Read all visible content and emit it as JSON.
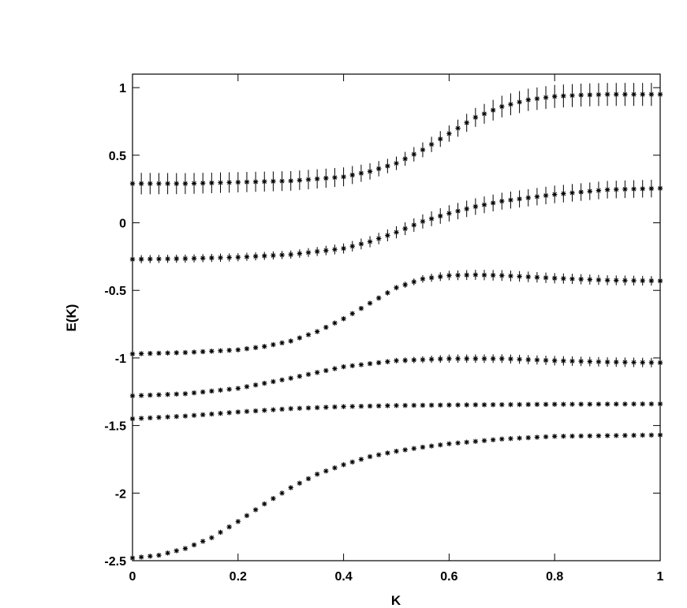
{
  "chart_data": {
    "type": "scatter",
    "title": "",
    "xlabel": "K",
    "ylabel": "E(K)",
    "xlim": [
      0,
      1
    ],
    "ylim": [
      -2.5,
      1.1
    ],
    "x_ticks": [
      "0",
      "0.2",
      "0.4",
      "0.6",
      "0.8",
      "1"
    ],
    "y_ticks": [
      "1",
      "0.5",
      "0",
      "-0.5",
      "-1",
      "-1.5",
      "-2",
      "-2.5"
    ],
    "grid": false,
    "marker_color": "#000000",
    "marker": "star",
    "n_points": 61,
    "series": [
      {
        "curve": [
          [
            0,
            0.29
          ],
          [
            0.1,
            0.29
          ],
          [
            0.2,
            0.3
          ],
          [
            0.3,
            0.31
          ],
          [
            0.4,
            0.34
          ],
          [
            0.45,
            0.38
          ],
          [
            0.5,
            0.44
          ],
          [
            0.55,
            0.54
          ],
          [
            0.6,
            0.66
          ],
          [
            0.65,
            0.78
          ],
          [
            0.7,
            0.86
          ],
          [
            0.75,
            0.91
          ],
          [
            0.8,
            0.935
          ],
          [
            0.85,
            0.945
          ],
          [
            0.9,
            0.95
          ],
          [
            1.0,
            0.95
          ]
        ],
        "error": [
          [
            0,
            0.08
          ],
          [
            0.2,
            0.075
          ],
          [
            0.4,
            0.07
          ],
          [
            0.5,
            0.05
          ],
          [
            0.6,
            0.06
          ],
          [
            0.7,
            0.08
          ],
          [
            0.8,
            0.085
          ],
          [
            1.0,
            0.085
          ]
        ]
      },
      {
        "curve": [
          [
            0,
            -0.27
          ],
          [
            0.1,
            -0.265
          ],
          [
            0.2,
            -0.255
          ],
          [
            0.3,
            -0.235
          ],
          [
            0.4,
            -0.19
          ],
          [
            0.45,
            -0.14
          ],
          [
            0.5,
            -0.07
          ],
          [
            0.55,
            0.01
          ],
          [
            0.6,
            0.07
          ],
          [
            0.65,
            0.12
          ],
          [
            0.7,
            0.16
          ],
          [
            0.8,
            0.21
          ],
          [
            0.9,
            0.245
          ],
          [
            1.0,
            0.255
          ]
        ],
        "error": [
          [
            0,
            0.03
          ],
          [
            0.3,
            0.03
          ],
          [
            0.5,
            0.045
          ],
          [
            0.6,
            0.06
          ],
          [
            0.8,
            0.065
          ],
          [
            1.0,
            0.065
          ]
        ]
      },
      {
        "curve": [
          [
            0,
            -0.97
          ],
          [
            0.1,
            -0.96
          ],
          [
            0.2,
            -0.94
          ],
          [
            0.25,
            -0.915
          ],
          [
            0.3,
            -0.875
          ],
          [
            0.35,
            -0.805
          ],
          [
            0.4,
            -0.71
          ],
          [
            0.45,
            -0.595
          ],
          [
            0.5,
            -0.48
          ],
          [
            0.55,
            -0.415
          ],
          [
            0.6,
            -0.39
          ],
          [
            0.65,
            -0.385
          ],
          [
            0.7,
            -0.39
          ],
          [
            0.8,
            -0.41
          ],
          [
            0.9,
            -0.425
          ],
          [
            1.0,
            -0.43
          ]
        ],
        "error": [
          [
            0,
            0.015
          ],
          [
            0.4,
            0.015
          ],
          [
            0.5,
            0.02
          ],
          [
            0.6,
            0.035
          ],
          [
            0.7,
            0.04
          ],
          [
            1.0,
            0.035
          ]
        ]
      },
      {
        "curve": [
          [
            0,
            -1.28
          ],
          [
            0.1,
            -1.265
          ],
          [
            0.2,
            -1.225
          ],
          [
            0.3,
            -1.15
          ],
          [
            0.4,
            -1.065
          ],
          [
            0.5,
            -1.02
          ],
          [
            0.6,
            -1.005
          ],
          [
            0.7,
            -1.005
          ],
          [
            0.8,
            -1.02
          ],
          [
            0.9,
            -1.03
          ],
          [
            1.0,
            -1.035
          ]
        ],
        "error": [
          [
            0,
            0.01
          ],
          [
            0.4,
            0.01
          ],
          [
            0.5,
            0.02
          ],
          [
            0.6,
            0.03
          ],
          [
            0.8,
            0.035
          ],
          [
            1.0,
            0.035
          ]
        ]
      },
      {
        "curve": [
          [
            0,
            -1.45
          ],
          [
            0.1,
            -1.43
          ],
          [
            0.2,
            -1.4
          ],
          [
            0.3,
            -1.375
          ],
          [
            0.4,
            -1.36
          ],
          [
            0.5,
            -1.352
          ],
          [
            0.6,
            -1.348
          ],
          [
            0.8,
            -1.343
          ],
          [
            1.0,
            -1.34
          ]
        ],
        "error": [
          [
            0,
            0.005
          ],
          [
            1.0,
            0.005
          ]
        ]
      },
      {
        "curve": [
          [
            0,
            -2.48
          ],
          [
            0.05,
            -2.46
          ],
          [
            0.1,
            -2.41
          ],
          [
            0.15,
            -2.33
          ],
          [
            0.2,
            -2.21
          ],
          [
            0.25,
            -2.08
          ],
          [
            0.3,
            -1.96
          ],
          [
            0.35,
            -1.86
          ],
          [
            0.4,
            -1.79
          ],
          [
            0.45,
            -1.73
          ],
          [
            0.5,
            -1.69
          ],
          [
            0.55,
            -1.66
          ],
          [
            0.6,
            -1.635
          ],
          [
            0.7,
            -1.6
          ],
          [
            0.8,
            -1.58
          ],
          [
            0.9,
            -1.575
          ],
          [
            1.0,
            -1.57
          ]
        ],
        "error": [
          [
            0,
            0.005
          ],
          [
            1.0,
            0.005
          ]
        ]
      }
    ]
  }
}
